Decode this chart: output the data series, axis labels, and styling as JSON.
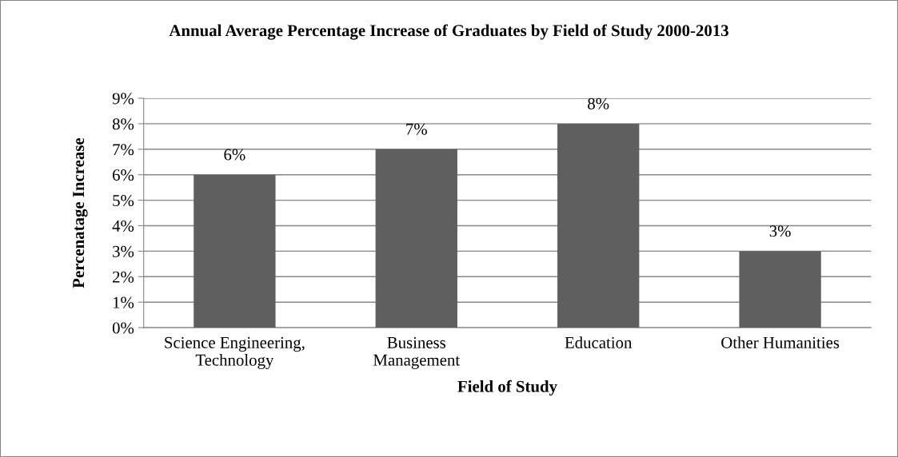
{
  "chart_data": {
    "type": "bar",
    "title": "Annual Average Percentage Increase of Graduates by Field of Study 2000-2013",
    "xlabel": "Field of Study",
    "ylabel": "Percenatage Increase",
    "categories": [
      "Science Engineering,\nTechnology",
      "Business\nManagement",
      "Education",
      "Other Humanities"
    ],
    "values": [
      6,
      7,
      8,
      3
    ],
    "value_labels": [
      "6%",
      "7%",
      "8%",
      "3%"
    ],
    "color": "#5f5f5f",
    "ylim": [
      0,
      9
    ],
    "yticks": [
      {
        "value": 0,
        "label": "0%"
      },
      {
        "value": 1,
        "label": "1%"
      },
      {
        "value": 2,
        "label": "2%"
      },
      {
        "value": 3,
        "label": "3%"
      },
      {
        "value": 4,
        "label": "4%"
      },
      {
        "value": 5,
        "label": "5%"
      },
      {
        "value": 6,
        "label": "6%"
      },
      {
        "value": 7,
        "label": "7%"
      },
      {
        "value": 8,
        "label": "8%"
      },
      {
        "value": 9,
        "label": "9%"
      }
    ],
    "grid": "y"
  }
}
